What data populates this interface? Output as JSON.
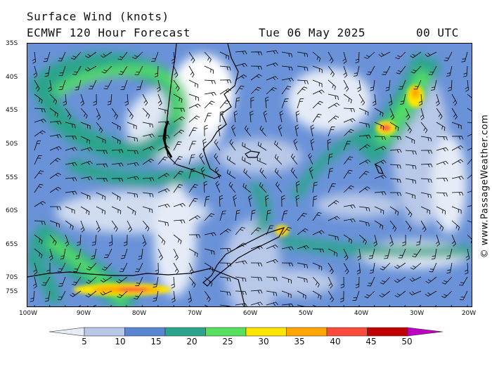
{
  "header": {
    "title": "Surface Wind (knots)",
    "model": "ECMWF 120 Hour Forecast",
    "date": "Tue 06 May 2025",
    "time": "00 UTC"
  },
  "copyright": "© www.PassageWeather.com",
  "map": {
    "lat_labels": [
      "35S",
      "40S",
      "45S",
      "50S",
      "55S",
      "60S",
      "65S",
      "70S",
      "75S"
    ],
    "lon_labels": [
      "100W",
      "90W",
      "80W",
      "70W",
      "60W",
      "50W",
      "40W",
      "30W",
      "20W"
    ]
  },
  "legend": {
    "labels": [
      "5",
      "10",
      "15",
      "20",
      "25",
      "30",
      "35",
      "40",
      "45",
      "50"
    ],
    "colors": [
      "#e6ecf7",
      "#b8c8e8",
      "#5a86d1",
      "#2ba48b",
      "#56e05e",
      "#ffe600",
      "#ffa600",
      "#ff4b3b",
      "#c20000",
      "#c000c0"
    ]
  }
}
